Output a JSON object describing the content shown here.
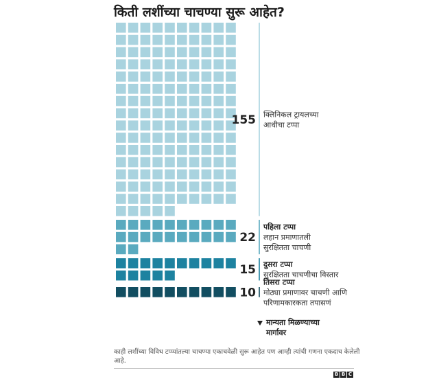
{
  "title": "किती लशींच्या चाचण्या सुरू आहेत?",
  "chart_data": {
    "type": "waffle",
    "units_per_row": 10,
    "groups": [
      {
        "value": 155,
        "name": "",
        "labels": [
          "क्लिनिकल ट्रायलच्या",
          "आधीचा टप्पा"
        ],
        "color": "#a9d3df"
      },
      {
        "value": 22,
        "name": "पहिला टप्पा",
        "labels": [
          "लहान प्रमाणातली",
          "सुरक्षितता चाचणी"
        ],
        "color": "#5aaabf"
      },
      {
        "value": 15,
        "name": "दुसरा टप्पा",
        "labels": [
          "सुरक्षितता चाचणीचा विस्तार"
        ],
        "color": "#1d82a0"
      },
      {
        "value": 10,
        "name": "तिसरा टप्पा",
        "labels": [
          "मोठ्या प्रमाणावर चाचणी आणि",
          "परिणामकारकता तपासणं"
        ],
        "color": "#124e61"
      }
    ],
    "annotation": {
      "icon": "down-triangle-icon",
      "lines": [
        "मान्यता मिळण्याच्या",
        "मार्गावर"
      ]
    }
  },
  "footnote": "काही लशींच्या विविध टप्प्यांतल्या चाचण्या एकाचवेळी सुरू आहेत पण आम्ही त्यांची गणना एकदाच केलेली आहे.",
  "logo": [
    "B",
    "B",
    "C"
  ]
}
